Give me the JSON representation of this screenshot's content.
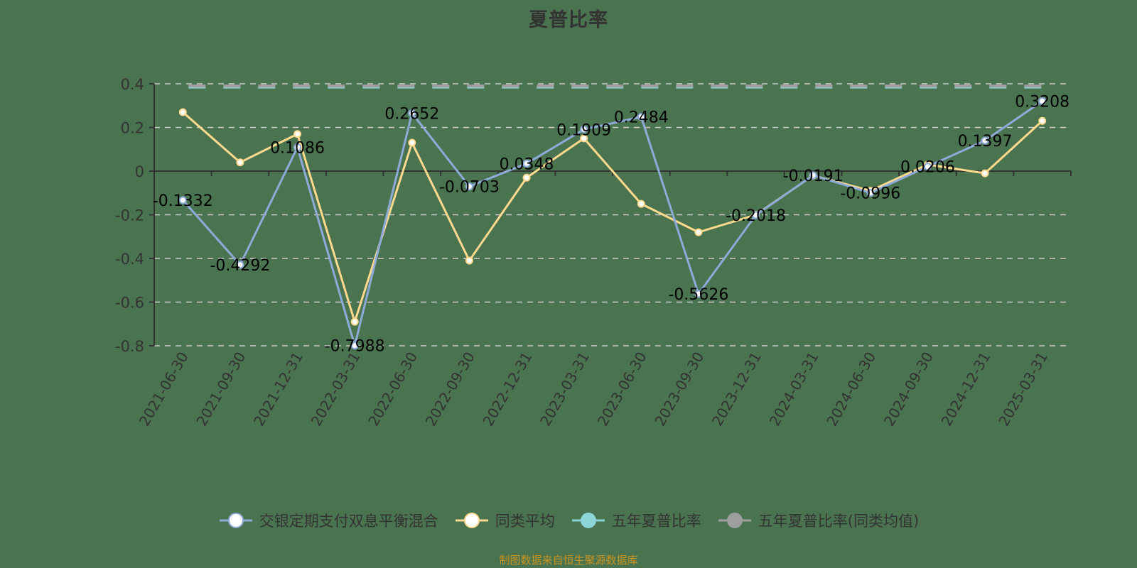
{
  "title": "夏普比率",
  "source_note": "制图数据来自恒生聚源数据库",
  "legend": [
    {
      "label": "交银定期支付双息平衡混合",
      "color": "#8eaad8",
      "marker": "hollow"
    },
    {
      "label": "同类平均",
      "color": "#ffd98e",
      "marker": "hollow"
    },
    {
      "label": "五年夏普比率",
      "color": "#8bd5d8",
      "marker": "filled"
    },
    {
      "label": "五年夏普比率(同类均值)",
      "color": "#9e9e9e",
      "marker": "filled"
    }
  ],
  "colors": {
    "background": "#4a7350",
    "axis": "#333333",
    "grid": "#cccccc",
    "fund": "#8eaad8",
    "peer": "#ffd98e",
    "five_year": "#8bd5d8",
    "five_year_peer": "#9e9e9e",
    "source": "#c9931f"
  },
  "chart_data": {
    "type": "line",
    "title": "夏普比率",
    "xlabel": "",
    "ylabel": "",
    "ylim": [
      -0.8,
      0.4
    ],
    "yticks": [
      0.4,
      0.2,
      0,
      -0.2,
      -0.4,
      -0.6,
      -0.8
    ],
    "grid": true,
    "legend_position": "bottom",
    "categories": [
      "2021-06-30",
      "2021-09-30",
      "2021-12-31",
      "2022-03-31",
      "2022-06-30",
      "2022-09-30",
      "2022-12-31",
      "2023-03-31",
      "2023-06-30",
      "2023-09-30",
      "2023-12-31",
      "2024-03-31",
      "2024-06-30",
      "2024-09-30",
      "2024-12-31",
      "2025-03-31"
    ],
    "series": [
      {
        "name": "交银定期支付双息平衡混合",
        "labels_shown": true,
        "values": [
          -0.1332,
          -0.4292,
          0.1086,
          -0.7988,
          0.2652,
          -0.0703,
          0.0348,
          0.1909,
          0.2484,
          -0.5626,
          -0.2018,
          -0.0191,
          -0.0996,
          0.0206,
          0.1397,
          0.3208
        ]
      },
      {
        "name": "同类平均",
        "labels_shown": false,
        "values": [
          0.27,
          0.04,
          0.17,
          -0.69,
          0.13,
          -0.41,
          -0.03,
          0.15,
          -0.15,
          -0.28,
          -0.2,
          -0.02,
          -0.09,
          0.03,
          -0.01,
          0.23
        ]
      },
      {
        "name": "五年夏普比率",
        "labels_shown": false,
        "values": [
          0.39,
          0.39,
          0.39,
          0.39,
          0.39,
          0.39,
          0.39,
          0.39,
          0.39,
          0.39,
          0.39,
          0.39,
          0.39,
          0.39,
          0.39,
          0.39
        ]
      },
      {
        "name": "五年夏普比率(同类均值)",
        "labels_shown": false,
        "values": [
          0.39,
          0.39,
          0.39,
          0.39,
          0.39,
          0.39,
          0.39,
          0.39,
          0.39,
          0.39,
          0.39,
          0.39,
          0.39,
          0.39,
          0.39,
          0.39
        ]
      }
    ]
  }
}
